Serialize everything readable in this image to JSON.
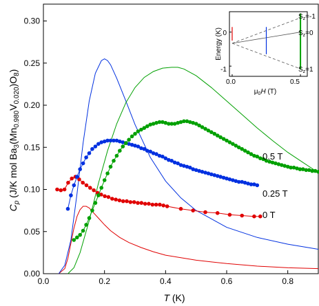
{
  "chart_data": {
    "type": "scatter",
    "xlabel": "T (K)",
    "ylabel": "Cp (J/K mol Ba3(Mn0.980V0.020)O8)",
    "xlim": [
      0,
      0.9
    ],
    "ylim": [
      0,
      0.32
    ],
    "x_ticks": [
      "0.0",
      "0.2",
      "0.4",
      "0.6",
      "0.8"
    ],
    "y_ticks": [
      "0.00",
      "0.05",
      "0.10",
      "0.15",
      "0.20",
      "0.25",
      "0.30"
    ],
    "series": [
      {
        "name": "0 T",
        "color": "#e00000",
        "marker": "circle",
        "x": [
          0.045,
          0.057,
          0.069,
          0.081,
          0.093,
          0.105,
          0.117,
          0.129,
          0.141,
          0.153,
          0.165,
          0.177,
          0.189,
          0.201,
          0.213,
          0.225,
          0.237,
          0.249,
          0.261,
          0.273,
          0.285,
          0.297,
          0.309,
          0.321,
          0.333,
          0.345,
          0.357,
          0.369,
          0.381,
          0.393,
          0.405,
          0.45,
          0.49,
          0.53,
          0.57,
          0.61,
          0.65,
          0.69,
          0.71
        ],
        "y": [
          0.1,
          0.099,
          0.1,
          0.108,
          0.113,
          0.115,
          0.112,
          0.108,
          0.105,
          0.102,
          0.099,
          0.096,
          0.094,
          0.092,
          0.091,
          0.089,
          0.088,
          0.087,
          0.086,
          0.086,
          0.085,
          0.085,
          0.084,
          0.084,
          0.083,
          0.083,
          0.082,
          0.082,
          0.082,
          0.081,
          0.08,
          0.077,
          0.075,
          0.073,
          0.072,
          0.07,
          0.069,
          0.068,
          0.068
        ]
      },
      {
        "name": "0.25 T",
        "color": "#0030e0",
        "marker": "circle",
        "x": [
          0.08,
          0.09,
          0.1,
          0.11,
          0.12,
          0.13,
          0.14,
          0.15,
          0.16,
          0.17,
          0.18,
          0.19,
          0.2,
          0.21,
          0.22,
          0.23,
          0.24,
          0.25,
          0.26,
          0.27,
          0.28,
          0.29,
          0.3,
          0.31,
          0.32,
          0.33,
          0.34,
          0.35,
          0.36,
          0.37,
          0.38,
          0.39,
          0.4,
          0.41,
          0.42,
          0.43,
          0.44,
          0.45,
          0.46,
          0.47,
          0.48,
          0.49,
          0.5,
          0.51,
          0.52,
          0.53,
          0.54,
          0.55,
          0.56,
          0.57,
          0.58,
          0.59,
          0.6,
          0.61,
          0.62,
          0.63,
          0.64,
          0.65,
          0.66,
          0.67,
          0.68,
          0.69,
          0.7
        ],
        "y": [
          0.077,
          0.093,
          0.105,
          0.115,
          0.124,
          0.131,
          0.138,
          0.143,
          0.148,
          0.151,
          0.154,
          0.156,
          0.157,
          0.158,
          0.158,
          0.158,
          0.158,
          0.157,
          0.156,
          0.155,
          0.154,
          0.153,
          0.152,
          0.151,
          0.149,
          0.148,
          0.146,
          0.145,
          0.143,
          0.142,
          0.14,
          0.139,
          0.137,
          0.135,
          0.134,
          0.132,
          0.131,
          0.129,
          0.128,
          0.127,
          0.126,
          0.124,
          0.123,
          0.122,
          0.121,
          0.12,
          0.119,
          0.118,
          0.117,
          0.116,
          0.115,
          0.114,
          0.113,
          0.112,
          0.111,
          0.11,
          0.109,
          0.109,
          0.108,
          0.107,
          0.106,
          0.106,
          0.105
        ]
      },
      {
        "name": "0.5 T",
        "color": "#00a000",
        "marker": "circle",
        "x": [
          0.1,
          0.11,
          0.12,
          0.13,
          0.14,
          0.15,
          0.16,
          0.17,
          0.18,
          0.19,
          0.2,
          0.21,
          0.22,
          0.23,
          0.24,
          0.25,
          0.26,
          0.27,
          0.28,
          0.29,
          0.3,
          0.31,
          0.32,
          0.33,
          0.34,
          0.35,
          0.36,
          0.37,
          0.38,
          0.39,
          0.4,
          0.41,
          0.42,
          0.43,
          0.44,
          0.45,
          0.46,
          0.47,
          0.48,
          0.49,
          0.5,
          0.51,
          0.52,
          0.53,
          0.54,
          0.55,
          0.56,
          0.57,
          0.58,
          0.59,
          0.6,
          0.61,
          0.62,
          0.63,
          0.64,
          0.65,
          0.66,
          0.67,
          0.68,
          0.69,
          0.7,
          0.71,
          0.72,
          0.73,
          0.74,
          0.75,
          0.76,
          0.77,
          0.78,
          0.79,
          0.8,
          0.81,
          0.82,
          0.83,
          0.84,
          0.85,
          0.86,
          0.87,
          0.88,
          0.89,
          0.9
        ],
        "y": [
          0.04,
          0.043,
          0.046,
          0.051,
          0.058,
          0.066,
          0.075,
          0.084,
          0.093,
          0.102,
          0.111,
          0.119,
          0.127,
          0.134,
          0.14,
          0.146,
          0.151,
          0.155,
          0.159,
          0.163,
          0.166,
          0.169,
          0.171,
          0.173,
          0.175,
          0.177,
          0.178,
          0.179,
          0.18,
          0.18,
          0.179,
          0.178,
          0.178,
          0.178,
          0.179,
          0.18,
          0.181,
          0.181,
          0.18,
          0.179,
          0.178,
          0.176,
          0.174,
          0.172,
          0.17,
          0.168,
          0.166,
          0.164,
          0.162,
          0.16,
          0.158,
          0.156,
          0.154,
          0.152,
          0.15,
          0.148,
          0.146,
          0.144,
          0.142,
          0.14,
          0.139,
          0.137,
          0.136,
          0.134,
          0.133,
          0.132,
          0.131,
          0.13,
          0.129,
          0.128,
          0.127,
          0.126,
          0.126,
          0.125,
          0.124,
          0.124,
          0.123,
          0.123,
          0.122,
          0.122,
          0.121
        ]
      }
    ],
    "model_curves": [
      {
        "color": "#e00000",
        "x": [
          0.05,
          0.07,
          0.08,
          0.09,
          0.1,
          0.11,
          0.12,
          0.13,
          0.14,
          0.15,
          0.16,
          0.18,
          0.2,
          0.22,
          0.25,
          0.28,
          0.32,
          0.36,
          0.4,
          0.45,
          0.5,
          0.55,
          0.6,
          0.7,
          0.8,
          0.9
        ],
        "y": [
          0.0,
          0.006,
          0.018,
          0.036,
          0.054,
          0.068,
          0.076,
          0.08,
          0.08,
          0.078,
          0.074,
          0.066,
          0.058,
          0.051,
          0.043,
          0.037,
          0.031,
          0.026,
          0.022,
          0.019,
          0.016,
          0.014,
          0.012,
          0.009,
          0.007,
          0.006
        ]
      },
      {
        "color": "#0030e0",
        "x": [
          0.05,
          0.07,
          0.09,
          0.11,
          0.13,
          0.15,
          0.17,
          0.19,
          0.2,
          0.21,
          0.22,
          0.24,
          0.27,
          0.3,
          0.35,
          0.4,
          0.45,
          0.5,
          0.6,
          0.7,
          0.8,
          0.9
        ],
        "y": [
          0.0,
          0.01,
          0.04,
          0.095,
          0.155,
          0.205,
          0.238,
          0.253,
          0.255,
          0.253,
          0.248,
          0.232,
          0.205,
          0.177,
          0.138,
          0.11,
          0.09,
          0.075,
          0.055,
          0.043,
          0.035,
          0.029
        ]
      },
      {
        "color": "#00a000",
        "x": [
          0.08,
          0.1,
          0.12,
          0.15,
          0.18,
          0.21,
          0.24,
          0.27,
          0.3,
          0.33,
          0.36,
          0.39,
          0.42,
          0.44,
          0.46,
          0.5,
          0.55,
          0.6,
          0.65,
          0.7,
          0.75,
          0.8,
          0.85,
          0.9
        ],
        "y": [
          0.0,
          0.007,
          0.025,
          0.063,
          0.107,
          0.146,
          0.178,
          0.203,
          0.221,
          0.233,
          0.24,
          0.244,
          0.245,
          0.245,
          0.243,
          0.235,
          0.221,
          0.205,
          0.189,
          0.173,
          0.158,
          0.144,
          0.132,
          0.12
        ]
      }
    ],
    "inset": {
      "ylabel": "Energy (K)",
      "xlabel": "μ0H (T)",
      "x_ticks": [
        "0.0",
        "0.5"
      ],
      "y_ticks": [
        "0",
        "-1"
      ],
      "level_labels": [
        "Sz=-1",
        "Sz=0",
        "Sz=1"
      ],
      "xlim": [
        -0.02,
        0.55
      ],
      "ylim": [
        -1.3,
        0.6
      ],
      "markers": [
        {
          "field": 0.0,
          "color": "#e00000",
          "ymin": -0.25,
          "ymax": 0.15
        },
        {
          "field": 0.25,
          "color": "#0030e0",
          "ymin": -0.65,
          "ymax": 0.15
        },
        {
          "field": 0.5,
          "color": "#00a000",
          "ymin": -1.1,
          "ymax": 0.55
        }
      ],
      "levels": [
        {
          "x": [
            0.0,
            0.5
          ],
          "y": [
            -0.33,
            0.42
          ]
        },
        {
          "x": [
            0.0,
            0.5
          ],
          "y": [
            -0.33,
            0.0
          ]
        },
        {
          "x": [
            0.0,
            0.5
          ],
          "y": [
            -0.33,
            -1.08
          ]
        }
      ]
    }
  }
}
